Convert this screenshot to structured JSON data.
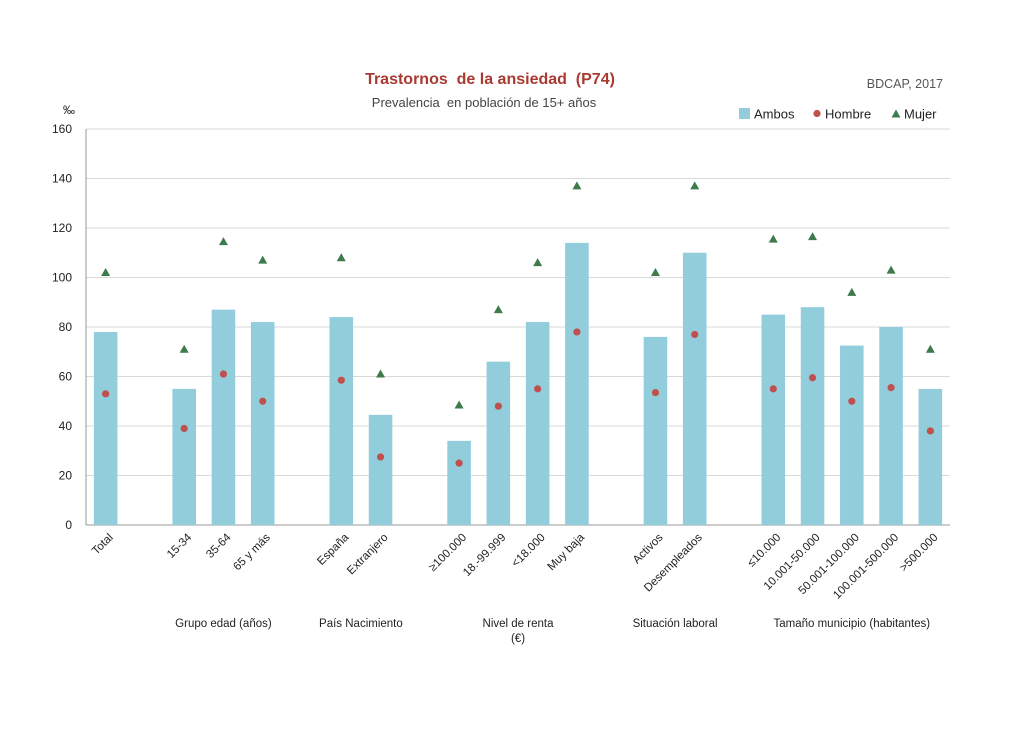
{
  "chart_data": {
    "type": "bar",
    "title": "Trastornos  de la ansiedad  (P74)",
    "subtitle": "Prevalencia  en población de 15+ años",
    "source": "BDCAP, 2017",
    "ylabel": "‰",
    "ylim": [
      0,
      160
    ],
    "yticks": [
      0,
      20,
      40,
      60,
      80,
      100,
      120,
      140,
      160
    ],
    "grid": true,
    "legend_position": "top-right",
    "legend": [
      "Ambos",
      "Hombre",
      "Mujer"
    ],
    "categories": [
      "Total",
      "15-34",
      "35-64",
      "65 y más",
      "España",
      "Extranjero",
      "≥100.000",
      "18.-99.999",
      "<18.000",
      "Muy baja",
      "Activos",
      "Desempleados",
      "≤10.000",
      "10.001-50.000",
      "50.001-100.000",
      "100.001-500.000",
      ">500.000"
    ],
    "groups": [
      {
        "label": "",
        "count": 1
      },
      {
        "label": "Grupo edad (años)",
        "count": 3
      },
      {
        "label": "País Nacimiento",
        "count": 2
      },
      {
        "label": "Nivel de renta\n(€)",
        "count": 4
      },
      {
        "label": "Situación laboral",
        "count": 2
      },
      {
        "label": "Tamaño municipio (habitantes)",
        "count": 5
      }
    ],
    "series": [
      {
        "name": "Ambos",
        "type": "bar",
        "color": "#92cddc",
        "values": [
          78,
          55,
          87,
          82,
          84,
          44.5,
          34,
          66,
          82,
          114,
          76,
          110,
          85,
          88,
          72.5,
          80,
          55
        ]
      },
      {
        "name": "Hombre",
        "type": "marker-circle",
        "color": "#c0504d",
        "values": [
          53,
          39,
          61,
          50,
          58.5,
          27.5,
          25,
          48,
          55,
          78,
          53.5,
          77,
          55,
          59.5,
          50,
          55.5,
          38
        ]
      },
      {
        "name": "Mujer",
        "type": "marker-triangle",
        "color": "#3d7a4c",
        "values": [
          102,
          71,
          114.5,
          107,
          108,
          61,
          48.5,
          87,
          106,
          137,
          102,
          137,
          115.5,
          116.5,
          94,
          103,
          71
        ]
      }
    ]
  }
}
